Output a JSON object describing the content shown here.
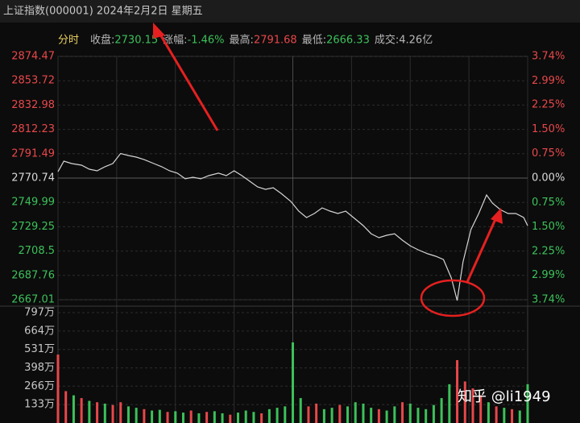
{
  "header": {
    "title": "上证指数(000001) 2024年2月2日 星期五",
    "tab": "分时",
    "stats": [
      {
        "label": "收盘:",
        "value": "2730.15",
        "color": "#3cc15a"
      },
      {
        "label": "涨幅:",
        "value": "-1.46%",
        "color": "#3cc15a"
      },
      {
        "label": "最高:",
        "value": "2791.68",
        "color": "#e8474a"
      },
      {
        "label": "最低:",
        "value": "2666.33",
        "color": "#3cc15a"
      },
      {
        "label": "成交:",
        "value": "4.26亿",
        "color": "#b8b8b8"
      }
    ]
  },
  "watermark": "知乎 @li1949",
  "chart_data": [
    {
      "type": "line",
      "color": "#d4d4d4",
      "up_color": "#e8474a",
      "down_color": "#3cc15a",
      "flat_color": "#d8d8d8",
      "grid": true,
      "xlim": [
        0,
        240
      ],
      "xticks": [
        0,
        30,
        60,
        90,
        120,
        150,
        180,
        210,
        240
      ],
      "ylim": [
        2667.01,
        2874.47
      ],
      "yticks": [
        2874.47,
        2853.72,
        2832.98,
        2812.23,
        2791.49,
        2770.74,
        2749.99,
        2729.25,
        2708.5,
        2687.76,
        2667.01
      ],
      "y2lim": [
        -3.74,
        3.74
      ],
      "y2ticks": [
        {
          "value": 3.74,
          "label": "3.74%"
        },
        {
          "value": 2.99,
          "label": "2.99%"
        },
        {
          "value": 2.25,
          "label": "2.25%"
        },
        {
          "value": 1.5,
          "label": "1.50%"
        },
        {
          "value": 0.75,
          "label": "0.75%"
        },
        {
          "value": 0,
          "label": "0.00%"
        },
        {
          "value": -0.75,
          "label": "0.75%"
        },
        {
          "value": -1.5,
          "label": "1.50%"
        },
        {
          "value": -2.25,
          "label": "2.25%"
        },
        {
          "value": -2.99,
          "label": "2.99%"
        },
        {
          "value": -3.74,
          "label": "3.74%"
        }
      ],
      "x": [
        0,
        3,
        7,
        12,
        16,
        20,
        24,
        28,
        32,
        36,
        40,
        44,
        49,
        53,
        57,
        61,
        65,
        69,
        73,
        77,
        82,
        86,
        90,
        94,
        98,
        102,
        106,
        110,
        114,
        119,
        123,
        127,
        131,
        135,
        139,
        143,
        147,
        151,
        156,
        160,
        164,
        168,
        172,
        176,
        180,
        184,
        189,
        193,
        197,
        201,
        204,
        207,
        211,
        215,
        219,
        222,
        226,
        230,
        234,
        238,
        240
      ],
      "values": [
        2776.2,
        2785.2,
        2783.1,
        2781.7,
        2778.3,
        2776.9,
        2780.4,
        2783.1,
        2791.68,
        2790.0,
        2788.6,
        2786.5,
        2783.1,
        2780.4,
        2776.9,
        2774.9,
        2770.1,
        2771.4,
        2770.1,
        2772.8,
        2774.9,
        2772.8,
        2776.9,
        2772.8,
        2768.0,
        2763.2,
        2761.1,
        2762.5,
        2757.7,
        2750.8,
        2742.6,
        2737.1,
        2740.5,
        2745.3,
        2742.6,
        2740.5,
        2742.6,
        2737.1,
        2730.2,
        2723.3,
        2719.9,
        2722.0,
        2723.3,
        2717.8,
        2713.0,
        2709.6,
        2706.2,
        2704.1,
        2701.3,
        2685.5,
        2666.33,
        2699.3,
        2726.8,
        2740.5,
        2756.3,
        2749.4,
        2743.9,
        2740.5,
        2740.5,
        2737.1,
        2730.15
      ]
    },
    {
      "type": "bar",
      "xlim": [
        0,
        240
      ],
      "ylim": [
        0,
        797
      ],
      "yticks": [
        {
          "value": 797,
          "label": "797万"
        },
        {
          "value": 664,
          "label": "664万"
        },
        {
          "value": 531,
          "label": "531万"
        },
        {
          "value": 398,
          "label": "398万"
        },
        {
          "value": 266,
          "label": "266万"
        },
        {
          "value": 133,
          "label": "133万"
        }
      ],
      "x": [
        0,
        4,
        8,
        12,
        16,
        20,
        24,
        28,
        32,
        36,
        40,
        44,
        48,
        52,
        56,
        60,
        64,
        68,
        72,
        76,
        80,
        84,
        88,
        92,
        96,
        100,
        104,
        108,
        112,
        116,
        120,
        124,
        128,
        132,
        136,
        140,
        144,
        148,
        152,
        156,
        160,
        164,
        168,
        172,
        176,
        180,
        184,
        188,
        192,
        196,
        200,
        204,
        208,
        212,
        216,
        220,
        224,
        228,
        232,
        236,
        240
      ],
      "values": [
        494,
        230,
        200,
        180,
        160,
        150,
        140,
        130,
        150,
        120,
        110,
        100,
        90,
        95,
        80,
        85,
        75,
        90,
        70,
        80,
        85,
        70,
        60,
        75,
        90,
        80,
        70,
        100,
        110,
        120,
        582,
        180,
        120,
        140,
        100,
        110,
        130,
        120,
        150,
        140,
        110,
        100,
        90,
        120,
        150,
        140,
        110,
        100,
        130,
        180,
        280,
        454,
        300,
        250,
        200,
        150,
        120,
        110,
        100,
        90,
        280
      ],
      "colors": [
        "#e8474a",
        "#e8474a",
        "#3cc15a",
        "#e8474a",
        "#3cc15a",
        "#e8474a",
        "#3cc15a",
        "#e8474a",
        "#e8474a",
        "#3cc15a",
        "#3cc15a",
        "#e8474a",
        "#3cc15a",
        "#3cc15a",
        "#e8474a",
        "#3cc15a",
        "#3cc15a",
        "#e8474a",
        "#3cc15a",
        "#e8474a",
        "#3cc15a",
        "#3cc15a",
        "#e8474a",
        "#3cc15a",
        "#3cc15a",
        "#3cc15a",
        "#e8474a",
        "#3cc15a",
        "#3cc15a",
        "#3cc15a",
        "#3cc15a",
        "#3cc15a",
        "#e8474a",
        "#e8474a",
        "#3cc15a",
        "#3cc15a",
        "#e8474a",
        "#3cc15a",
        "#3cc15a",
        "#3cc15a",
        "#3cc15a",
        "#e8474a",
        "#3cc15a",
        "#3cc15a",
        "#e8474a",
        "#3cc15a",
        "#3cc15a",
        "#3cc15a",
        "#3cc15a",
        "#3cc15a",
        "#3cc15a",
        "#e8474a",
        "#e8474a",
        "#e8474a",
        "#e8474a",
        "#3cc15a",
        "#e8474a",
        "#3cc15a",
        "#e8474a",
        "#3cc15a",
        "#3cc15a"
      ]
    }
  ]
}
